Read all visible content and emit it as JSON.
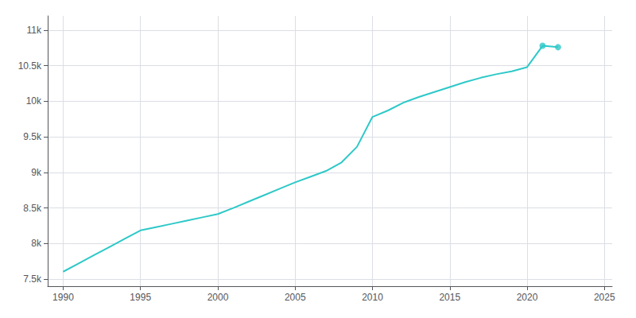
{
  "chart_data": {
    "type": "line",
    "series": [
      {
        "type": "line",
        "color": "#2ec8c8",
        "x": [
          1990,
          1991,
          1992,
          1993,
          1994,
          1995,
          1996,
          1997,
          1998,
          1999,
          2000,
          2001,
          2002,
          2003,
          2004,
          2005,
          2006,
          2007,
          2008,
          2009,
          2010,
          2011,
          2012,
          2013,
          2014,
          2015,
          2016,
          2017,
          2018,
          2019,
          2020,
          2021,
          2022
        ],
        "values": [
          7604,
          7720,
          7836,
          7952,
          8068,
          8184,
          8230,
          8276,
          8322,
          8368,
          8414,
          8500,
          8590,
          8680,
          8770,
          8860,
          8940,
          9020,
          9140,
          9360,
          9780,
          9870,
          9980,
          10060,
          10130,
          10200,
          10270,
          10330,
          10380,
          10420,
          10480,
          10780,
          10760
        ]
      },
      {
        "type": "scatter",
        "color": "#2ec8c8",
        "marker": "circle",
        "x": [
          2021,
          2022
        ],
        "values": [
          10780,
          10760
        ]
      }
    ],
    "xlim": [
      1989,
      2025.5
    ],
    "xticks": [
      1990,
      1995,
      2000,
      2005,
      2010,
      2015,
      2020,
      2025
    ],
    "ylim": [
      7400,
      11200
    ],
    "yticks": [
      {
        "value": 7500,
        "label": "7.5k"
      },
      {
        "value": 8000,
        "label": "8k"
      },
      {
        "value": 8500,
        "label": "8.5k"
      },
      {
        "value": 9000,
        "label": "9k"
      },
      {
        "value": 9500,
        "label": "9.5k"
      },
      {
        "value": 10000,
        "label": "10k"
      },
      {
        "value": 10500,
        "label": "10.5k"
      },
      {
        "value": 11000,
        "label": "11k"
      }
    ],
    "grid": true
  }
}
